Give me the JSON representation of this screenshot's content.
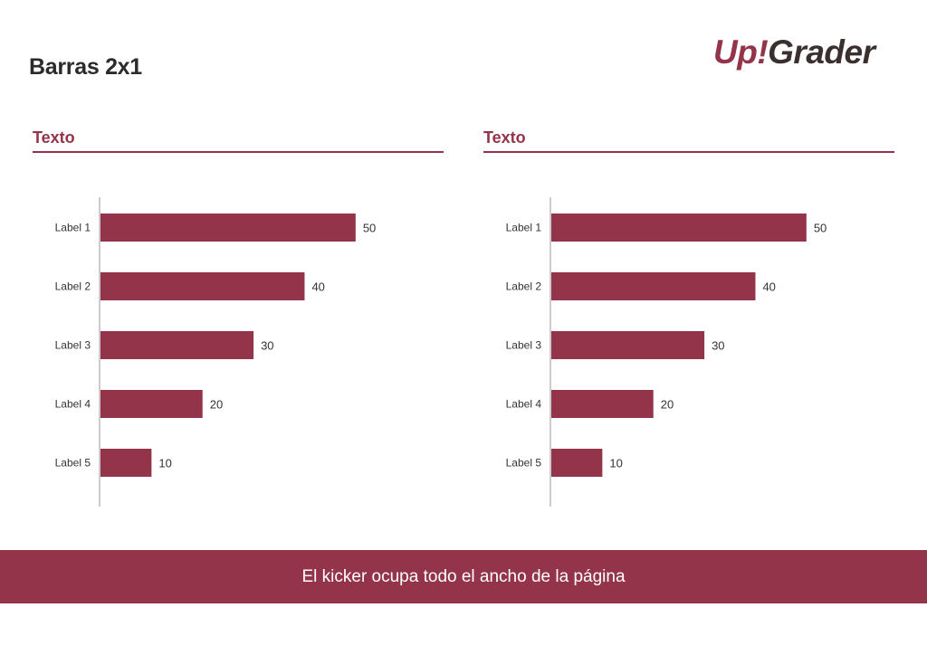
{
  "title": "Barras 2x1",
  "logo": {
    "text_a": "Up!",
    "text_b": "Grader"
  },
  "colors": {
    "accent": "#93344a",
    "axis": "#bbbbbb",
    "text": "#333333"
  },
  "footer": {
    "text": "El kicker ocupa todo el ancho de la página"
  },
  "panels": [
    {
      "title": "Texto"
    },
    {
      "title": "Texto"
    }
  ],
  "chart_data": [
    {
      "type": "bar",
      "orientation": "horizontal",
      "title": "Texto",
      "categories": [
        "Label 1",
        "Label 2",
        "Label 3",
        "Label 4",
        "Label 5"
      ],
      "values": [
        50,
        40,
        30,
        20,
        10
      ],
      "xlim": [
        0,
        55
      ],
      "grid": false,
      "data_labels": true
    },
    {
      "type": "bar",
      "orientation": "horizontal",
      "title": "Texto",
      "categories": [
        "Label 1",
        "Label 2",
        "Label 3",
        "Label 4",
        "Label 5"
      ],
      "values": [
        50,
        40,
        30,
        20,
        10
      ],
      "xlim": [
        0,
        55
      ],
      "grid": false,
      "data_labels": true
    }
  ]
}
